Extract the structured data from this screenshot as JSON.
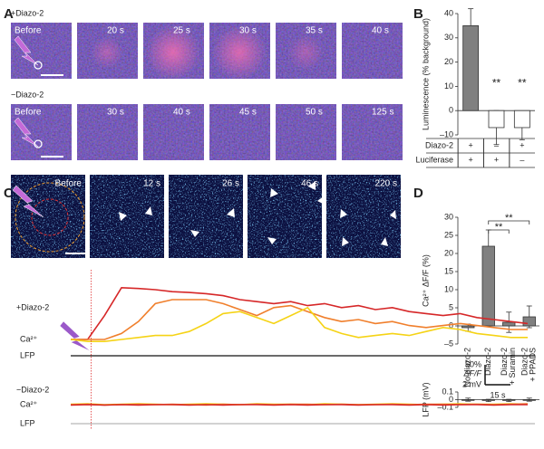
{
  "panel_a": {
    "label": "A",
    "rows": [
      {
        "label": "+Diazo-2",
        "frames": [
          "Before",
          "20 s",
          "25 s",
          "30 s",
          "35 s",
          "40 s"
        ]
      },
      {
        "label": "−Diazo-2",
        "frames": [
          "Before",
          "30 s",
          "40 s",
          "45 s",
          "50 s",
          "125 s"
        ]
      }
    ]
  },
  "panel_b_label": "B",
  "panel_c": {
    "label": "C",
    "frames": [
      "Before",
      "12 s",
      "26 s",
      "46 s",
      "220 s"
    ]
  },
  "panel_d_label": "D",
  "chart_data": [
    {
      "type": "bar",
      "ylabel": "Luminescence (% background)",
      "values": [
        35,
        -7,
        -7
      ],
      "errors": [
        7,
        7,
        5
      ],
      "significance": [
        null,
        "**",
        "**"
      ],
      "color": [
        "#808080",
        "#ffffff",
        "#ffffff"
      ],
      "ylim": [
        -10,
        40
      ],
      "yticks": [
        {
          "value": -10,
          "label": "–10"
        },
        0,
        10,
        20,
        30,
        40
      ],
      "table": {
        "rows": [
          [
            "Diazo-2",
            "+",
            "–",
            "+"
          ],
          [
            "Luciferase",
            "+",
            "+",
            "–"
          ]
        ]
      }
    },
    {
      "type": "line",
      "x": [
        0,
        10,
        20,
        30,
        40,
        50,
        60,
        70,
        80,
        90,
        100,
        110,
        120,
        130,
        140,
        150,
        160,
        170,
        180,
        190,
        200,
        210,
        220,
        230,
        240,
        250,
        260,
        270
      ],
      "stimulus": 12,
      "groups": [
        {
          "label": "+Diazo-2",
          "ca_label": "Ca²⁺",
          "lfp_label": "LFP",
          "series": [
            {
              "color": "#d62728",
              "values": [
                0,
                0,
                60,
                130,
                128,
                125,
                120,
                118,
                115,
                110,
                100,
                95,
                90,
                95,
                85,
                90,
                80,
                85,
                75,
                80,
                70,
                65,
                60,
                65,
                55,
                50,
                45,
                40
              ]
            },
            {
              "color": "#f07f2c",
              "values": [
                0,
                0,
                0,
                15,
                45,
                90,
                100,
                100,
                100,
                90,
                75,
                60,
                80,
                85,
                70,
                55,
                45,
                50,
                40,
                45,
                35,
                30,
                35,
                40,
                35,
                30,
                25,
                25
              ]
            },
            {
              "color": "#f5d316",
              "values": [
                0,
                -5,
                -5,
                0,
                5,
                10,
                10,
                20,
                40,
                65,
                70,
                55,
                40,
                60,
                80,
                30,
                15,
                5,
                10,
                15,
                10,
                20,
                30,
                25,
                15,
                10,
                5,
                5
              ]
            }
          ]
        },
        {
          "label": "−Diazo-2",
          "ca_label": "Ca²⁺",
          "lfp_label": "LFP",
          "series": [
            {
              "color": "#f5d316",
              "values": [
                1,
                2,
                0,
                1,
                2,
                1,
                0,
                1,
                2,
                1,
                0,
                2,
                1,
                1,
                0,
                2,
                1,
                0,
                1,
                2,
                1,
                0,
                1,
                2,
                1,
                1,
                2,
                1
              ]
            },
            {
              "color": "#f07f2c",
              "values": [
                0,
                1,
                -1,
                0,
                1,
                0,
                1,
                0,
                -1,
                1,
                0,
                1,
                0,
                1,
                1,
                0,
                1,
                0,
                0,
                1,
                0,
                1,
                1,
                0,
                1,
                0,
                1,
                2
              ]
            },
            {
              "color": "#d62728",
              "values": [
                -1,
                0,
                -1,
                0,
                -1,
                0,
                0,
                -1,
                0,
                -1,
                0,
                0,
                -1,
                0,
                -1,
                0,
                0,
                -1,
                0,
                0,
                -1,
                0,
                -1,
                0,
                0,
                -1,
                0,
                0
              ]
            }
          ]
        }
      ],
      "scale_y": {
        "value": 50,
        "label": "50%"
      },
      "scale_unit": "ΔF/F",
      "scale_lfp": "2 mV",
      "scale_x": {
        "value": 15,
        "label": "15 s"
      }
    },
    {
      "type": "bar",
      "ylabel": "Ca²⁺ ΔF/F (%)",
      "categories": [
        "No diazo-2",
        "Diazo-2",
        [
          "Diazo-2",
          "+ Suramin"
        ],
        [
          "Diazo-2",
          "+ PPADS"
        ]
      ],
      "values": [
        -0.5,
        22,
        1,
        2.5
      ],
      "errors": [
        1,
        4.5,
        2.8,
        3
      ],
      "color": "#808080",
      "ylim": [
        -5,
        30
      ],
      "yticks": [
        {
          "value": -5,
          "label": "–5"
        },
        0,
        5,
        10,
        15,
        20,
        25,
        30
      ],
      "comparisons": [
        {
          "label": "**",
          "between": [
            1,
            2
          ]
        },
        {
          "label": "**",
          "between": [
            1,
            3
          ]
        }
      ]
    },
    {
      "type": "bar",
      "ylabel": "LFP (mV)",
      "values": [
        0,
        -0.01,
        -0.01,
        0
      ],
      "errors": [
        0.02,
        0.015,
        0.015,
        0.02
      ],
      "color": "#808080",
      "ylim": [
        -0.1,
        0.1
      ],
      "yticks": [
        {
          "value": -0.1,
          "label": "–0.1"
        },
        0,
        0.1
      ]
    }
  ]
}
